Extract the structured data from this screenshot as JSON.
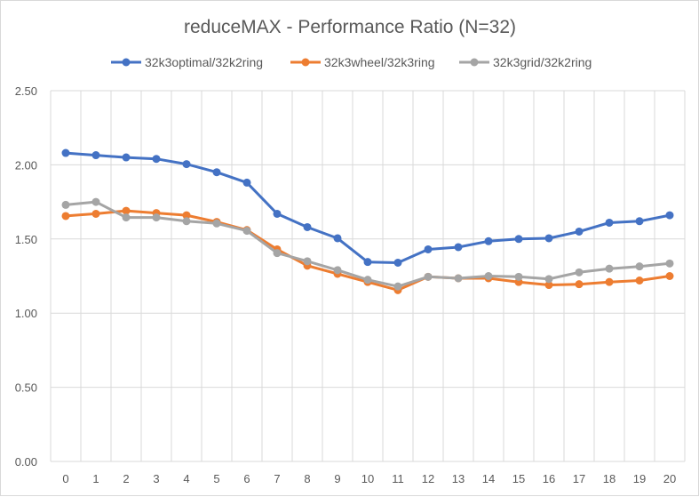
{
  "chart_data": {
    "type": "line",
    "title": "reduceMAX - Performance Ratio (N=32)",
    "xlabel": "",
    "ylabel": "",
    "x": [
      0,
      1,
      2,
      3,
      4,
      5,
      6,
      7,
      8,
      9,
      10,
      11,
      12,
      13,
      14,
      15,
      16,
      17,
      18,
      19,
      20
    ],
    "x_tick_labels": [
      "0",
      "1",
      "2",
      "3",
      "4",
      "5",
      "6",
      "7",
      "8",
      "9",
      "10",
      "11",
      "12",
      "13",
      "14",
      "15",
      "16",
      "17",
      "18",
      "19",
      "20"
    ],
    "ylim": [
      0,
      2.5
    ],
    "y_ticks": [
      0,
      0.5,
      1.0,
      1.5,
      2.0,
      2.5
    ],
    "y_tick_labels": [
      "0.00",
      "0.50",
      "1.00",
      "1.50",
      "2.00",
      "2.50"
    ],
    "grid": true,
    "legend_position": "top",
    "series": [
      {
        "name": "32k3optimal/32k2ring",
        "color": "#4472C4",
        "values": [
          2.08,
          2.065,
          2.05,
          2.04,
          2.005,
          1.95,
          1.88,
          1.67,
          1.58,
          1.505,
          1.345,
          1.34,
          1.43,
          1.445,
          1.485,
          1.5,
          1.505,
          1.55,
          1.61,
          1.62,
          1.66
        ]
      },
      {
        "name": "32k3wheel/32k3ring",
        "color": "#ED7D31",
        "values": [
          1.655,
          1.67,
          1.69,
          1.675,
          1.66,
          1.615,
          1.56,
          1.43,
          1.32,
          1.265,
          1.21,
          1.155,
          1.245,
          1.235,
          1.235,
          1.21,
          1.19,
          1.195,
          1.21,
          1.22,
          1.25
        ]
      },
      {
        "name": "32k3grid/32k2ring",
        "color": "#A5A5A5",
        "values": [
          1.73,
          1.75,
          1.645,
          1.645,
          1.62,
          1.605,
          1.555,
          1.405,
          1.35,
          1.29,
          1.225,
          1.18,
          1.245,
          1.235,
          1.25,
          1.245,
          1.23,
          1.275,
          1.3,
          1.315,
          1.335
        ]
      }
    ]
  }
}
